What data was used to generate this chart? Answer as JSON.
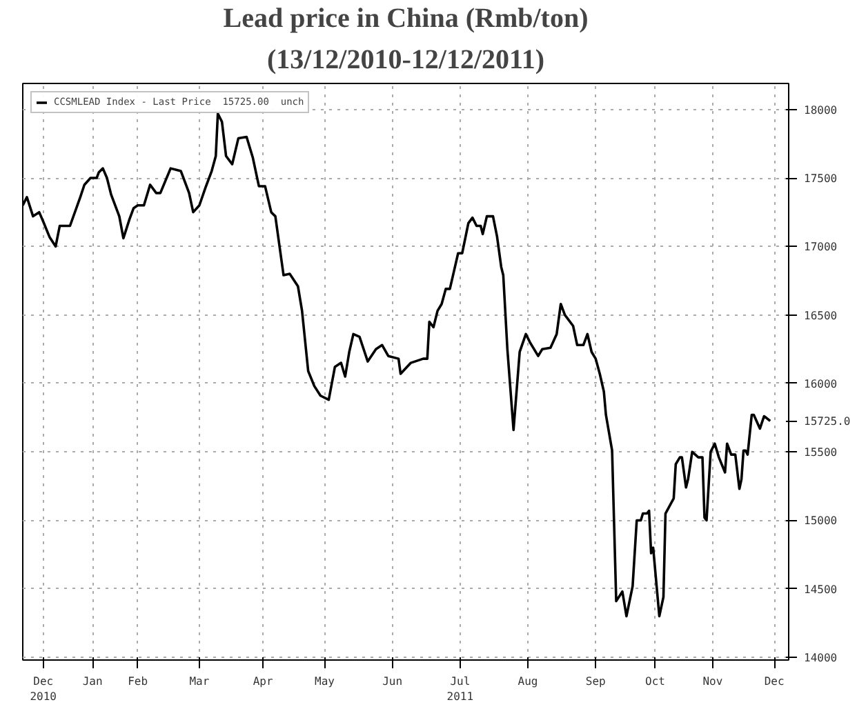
{
  "chart_data": {
    "type": "line",
    "title": "Lead price in China (Rmb/ton)",
    "subtitle": "(13/12/2010-12/12/2011)",
    "x": [
      "2010-12-13",
      "2010-12-15",
      "2010-12-18",
      "2010-12-21",
      "2010-12-23",
      "2010-12-26",
      "2010-12-29",
      "2010-12-31",
      "2011-01-05",
      "2011-01-10",
      "2011-01-12",
      "2011-01-15",
      "2011-01-18",
      "2011-01-19",
      "2011-01-21",
      "2011-01-23",
      "2011-01-25",
      "2011-01-29",
      "2011-01-31",
      "2011-02-03",
      "2011-02-05",
      "2011-02-07",
      "2011-02-10",
      "2011-02-13",
      "2011-02-16",
      "2011-02-18",
      "2011-02-23",
      "2011-02-28",
      "2011-03-04",
      "2011-03-06",
      "2011-03-09",
      "2011-03-12",
      "2011-03-15",
      "2011-03-17",
      "2011-03-18",
      "2011-03-20",
      "2011-03-22",
      "2011-03-25",
      "2011-03-28",
      "2011-04-01",
      "2011-04-04",
      "2011-04-07",
      "2011-04-10",
      "2011-04-13",
      "2011-04-15",
      "2011-04-19",
      "2011-04-22",
      "2011-04-26",
      "2011-04-28",
      "2011-05-01",
      "2011-05-04",
      "2011-05-07",
      "2011-05-11",
      "2011-05-14",
      "2011-05-17",
      "2011-05-19",
      "2011-05-21",
      "2011-05-23",
      "2011-05-26",
      "2011-05-30",
      "2011-06-03",
      "2011-06-06",
      "2011-06-09",
      "2011-06-14",
      "2011-06-15",
      "2011-06-20",
      "2011-06-26",
      "2011-06-28",
      "2011-06-29",
      "2011-07-01",
      "2011-07-03",
      "2011-07-05",
      "2011-07-07",
      "2011-07-09",
      "2011-07-11",
      "2011-07-13",
      "2011-07-15",
      "2011-07-18",
      "2011-07-20",
      "2011-07-22",
      "2011-07-24",
      "2011-07-25",
      "2011-07-27",
      "2011-07-30",
      "2011-08-01",
      "2011-08-03",
      "2011-08-04",
      "2011-08-06",
      "2011-08-09",
      "2011-08-12",
      "2011-08-15",
      "2011-08-17",
      "2011-08-21",
      "2011-08-23",
      "2011-08-27",
      "2011-08-30",
      "2011-09-01",
      "2011-09-03",
      "2011-09-07",
      "2011-09-09",
      "2011-09-12",
      "2011-09-14",
      "2011-09-16",
      "2011-09-18",
      "2011-09-20",
      "2011-09-22",
      "2011-09-23",
      "2011-09-26",
      "2011-09-28",
      "2011-10-01",
      "2011-10-03",
      "2011-10-06",
      "2011-10-08",
      "2011-10-10",
      "2011-10-11",
      "2011-10-13",
      "2011-10-14",
      "2011-10-15",
      "2011-10-16",
      "2011-10-19",
      "2011-10-21",
      "2011-10-22",
      "2011-10-26",
      "2011-10-27",
      "2011-10-29",
      "2011-10-30",
      "2011-11-01",
      "2011-11-02",
      "2011-11-04",
      "2011-11-07",
      "2011-11-09",
      "2011-11-10",
      "2011-11-11",
      "2011-11-13",
      "2011-11-15",
      "2011-11-17",
      "2011-11-20",
      "2011-11-21",
      "2011-11-23",
      "2011-11-25",
      "2011-11-27",
      "2011-11-28",
      "2011-11-29",
      "2011-11-30",
      "2011-12-01",
      "2011-12-03",
      "2011-12-04",
      "2011-12-07",
      "2011-12-09",
      "2011-12-10",
      "2011-12-12"
    ],
    "series": [
      {
        "name": "CCSMLEAD Index - Last Price  15725.00  unch",
        "color": "#000000",
        "values": [
          17300,
          17360,
          17220,
          17250,
          17180,
          17070,
          17000,
          17150,
          17150,
          17360,
          17450,
          17500,
          17500,
          17540,
          17570,
          17500,
          17380,
          17220,
          17060,
          17200,
          17280,
          17300,
          17300,
          17450,
          17390,
          17390,
          17570,
          17550,
          17390,
          17250,
          17300,
          17430,
          17550,
          17660,
          17970,
          17910,
          17660,
          17600,
          17790,
          17800,
          17650,
          17440,
          17440,
          17250,
          17220,
          16790,
          16800,
          16710,
          16530,
          16090,
          15980,
          15910,
          15880,
          16120,
          16150,
          16050,
          16230,
          16360,
          16340,
          16160,
          16250,
          16280,
          16200,
          16180,
          16070,
          16150,
          16180,
          16180,
          16450,
          16410,
          16530,
          16580,
          16690,
          16690,
          16820,
          16950,
          16950,
          17170,
          17210,
          17150,
          17150,
          17090,
          17220,
          17220,
          17070,
          16850,
          16790,
          16250,
          15660,
          16230,
          16360,
          16300,
          16200,
          16250,
          16260,
          16360,
          16580,
          16500,
          16420,
          16280,
          16280,
          16360,
          16230,
          16180,
          16070,
          15940,
          15770,
          15510,
          14410,
          14480,
          14300,
          14520,
          15000,
          15000,
          15050,
          15050,
          15070,
          14760,
          14800,
          14300,
          14440,
          15050,
          15160,
          15410,
          15460,
          15460,
          15240,
          15300,
          15500,
          15460,
          15460,
          15020,
          15000,
          15500,
          15560,
          15460,
          15350,
          15560,
          15480,
          15480,
          15230,
          15300,
          15510,
          15510,
          15480,
          15770,
          15770,
          15670,
          15760,
          15750,
          15725
        ]
      }
    ],
    "xlim": [
      "2010-12-13",
      "2011-12-21"
    ],
    "xticks": [
      {
        "value": "2010-12-23",
        "label": "Dec\n2010"
      },
      {
        "value": "2011-01-16",
        "label": "Jan"
      },
      {
        "value": "2011-02-07",
        "label": "Feb"
      },
      {
        "value": "2011-03-09",
        "label": "Mar"
      },
      {
        "value": "2011-04-09",
        "label": "Apr"
      },
      {
        "value": "2011-05-09",
        "label": "May"
      },
      {
        "value": "2011-06-11",
        "label": "Jun"
      },
      {
        "value": "2011-07-14",
        "label": "Jul\n2011"
      },
      {
        "value": "2011-08-16",
        "label": "Aug"
      },
      {
        "value": "2011-09-18",
        "label": "Sep"
      },
      {
        "value": "2011-10-17",
        "label": "Oct"
      },
      {
        "value": "2011-11-14",
        "label": "Nov"
      },
      {
        "value": "2011-12-14",
        "label": "Dec"
      }
    ],
    "ylim": [
      13980,
      18190
    ],
    "yticks": [
      14000,
      14500,
      15000,
      15500,
      {
        "value": 15725,
        "label": "15725.0"
      },
      16000,
      16500,
      17000,
      17500,
      18000
    ],
    "grid": true,
    "legend": "top left",
    "line_style": "solid",
    "marker": "none"
  }
}
